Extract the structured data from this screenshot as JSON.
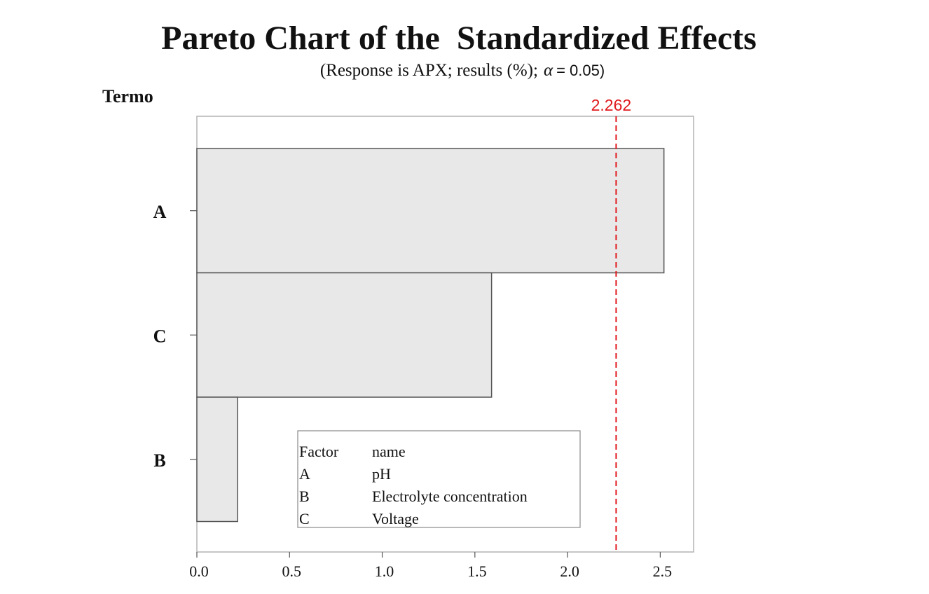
{
  "chart_data": {
    "type": "bar",
    "orientation": "horizontal",
    "title": "Pareto Chart of the  Standardized Effects",
    "subtitle_prefix": "(Response is APX; results (%);",
    "subtitle_alpha": "α",
    "subtitle_suffix": "= 0.05)",
    "ylabel": "Termo",
    "xlabel": "",
    "categories": [
      "A",
      "C",
      "B"
    ],
    "values": [
      2.52,
      1.59,
      0.22
    ],
    "xlim": [
      0,
      2.68
    ],
    "xticks": [
      "0.0",
      "0.5",
      "1.0",
      "1.5",
      "2.0",
      "2.5"
    ],
    "reference_line": {
      "value": 2.262,
      "label": "2.262",
      "color": "#e0191f",
      "style": "dashed"
    },
    "bar_color": "#e8e8e8",
    "grid": false,
    "legend": {
      "placement": "bottom-center",
      "header": [
        "Factor",
        "name"
      ],
      "rows": [
        [
          "A",
          "pH"
        ],
        [
          "B",
          "Electrolyte concentration"
        ],
        [
          "C",
          "Voltage"
        ]
      ]
    }
  }
}
